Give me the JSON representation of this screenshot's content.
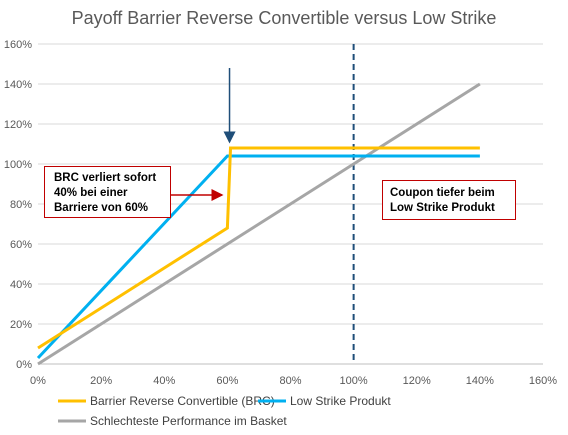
{
  "chart_data": {
    "type": "line",
    "title": "Payoff Barrier Reverse Convertible versus Low Strike",
    "xlim": [
      0,
      160
    ],
    "ylim": [
      0,
      160
    ],
    "x_ticks": [
      "0%",
      "20%",
      "40%",
      "60%",
      "80%",
      "100%",
      "120%",
      "140%",
      "160%"
    ],
    "y_ticks": [
      "0%",
      "20%",
      "40%",
      "60%",
      "80%",
      "100%",
      "120%",
      "140%",
      "160%"
    ],
    "grid": "horizontal",
    "legend": "bottom",
    "series": [
      {
        "name": "Barrier Reverse Convertible (BRC)",
        "color": "#FFC000",
        "x": [
          0,
          60,
          61,
          140
        ],
        "y": [
          8,
          68,
          108,
          108
        ]
      },
      {
        "name": "Low Strike Produkt",
        "color": "#00B0F0",
        "x": [
          0,
          60,
          140
        ],
        "y": [
          3,
          104,
          104
        ]
      },
      {
        "name": "Schlechteste Performance im Basket",
        "color": "#A6A6A6",
        "x": [
          0,
          140
        ],
        "y": [
          0,
          140
        ]
      }
    ],
    "vline": {
      "x": 100,
      "color": "#1F4E79",
      "style": "dashed"
    },
    "annotations": [
      {
        "text": "BRC verliert sofort\n40% bei einer\nBarriere von 60%",
        "arrow_color": "#C00000"
      },
      {
        "text": "Coupon tiefer beim\nLow Strike Produkt"
      }
    ],
    "marker_arrow": {
      "color": "#1F4E79"
    }
  }
}
